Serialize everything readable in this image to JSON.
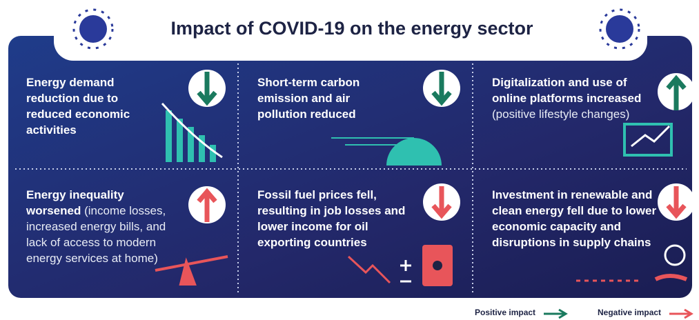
{
  "header": {
    "title": "Impact of COVID-19 on the energy sector"
  },
  "panels": [
    {
      "bold": "Energy demand reduction due to reduced economic activities"
    },
    {
      "bold": "Short-term carbon emission and air pollution reduced"
    },
    {
      "bold": "Digitalization and use of online platforms increased",
      "text": "(positive lifestyle changes)"
    },
    {
      "bold": "Energy inequality worsened",
      "text": "(income losses, increased energy bills, and lack of access to modern energy services at home)"
    },
    {
      "bold": "Fossil fuel prices fell, resulting in job losses and lower income for oil exporting countries"
    },
    {
      "bold": "Investment in renewable and clean energy fell due to lower economic capacity and disruptions in supply chains"
    }
  ],
  "legend": [
    {
      "label": "Positive impact"
    },
    {
      "label": "Negative impact"
    }
  ]
}
